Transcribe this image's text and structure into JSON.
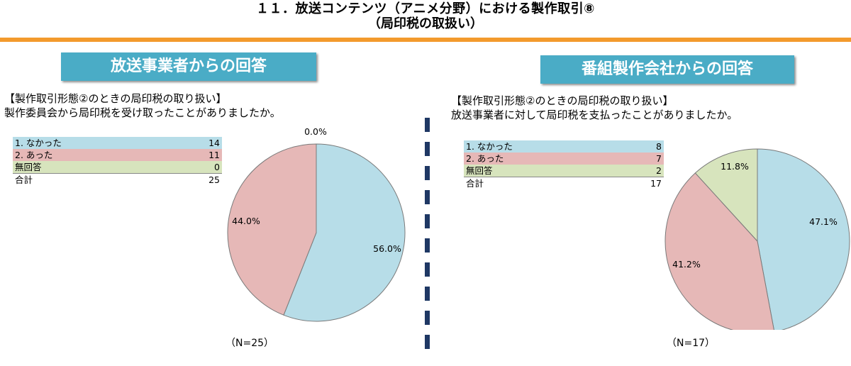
{
  "header": {
    "title_line1": "１１．放送コンテンツ（アニメ分野）における製作取引⑧",
    "title_line2": "（局印税の取扱い）"
  },
  "left": {
    "banner": "放送事業者からの回答",
    "question_line1": "【製作取引形態②のときの局印税の取り扱い】",
    "question_line2": "製作委員会から局印税を受け取ったことがありましたか。",
    "n_label": "（N=25）"
  },
  "right": {
    "banner": "番組製作会社からの回答",
    "question_line1": "【製作取引形態②のときの局印税の取り扱い】",
    "question_line2": "放送事業者に対して局印税を支払ったことがありましたか。",
    "n_label": "（N=17）"
  },
  "colors": {
    "nakatta": "#b7dde8",
    "atta": "#e6b8b7",
    "mukaito": "#d7e4bd",
    "banner": "#4aacc6",
    "rule": "#f39a2d"
  },
  "chart_data": [
    {
      "type": "pie",
      "categories": [
        "1. なかった",
        "2. あった",
        "無回答"
      ],
      "values": [
        14,
        11,
        0
      ],
      "total_label": "合計",
      "total": 25,
      "percent_labels": [
        "56.0%",
        "44.0%",
        "0.0%"
      ]
    },
    {
      "type": "pie",
      "categories": [
        "1. なかった",
        "2. あった",
        "無回答"
      ],
      "values": [
        8,
        7,
        2
      ],
      "total_label": "合計",
      "total": 17,
      "percent_labels": [
        "47.1%",
        "41.2%",
        "11.8%"
      ]
    }
  ]
}
